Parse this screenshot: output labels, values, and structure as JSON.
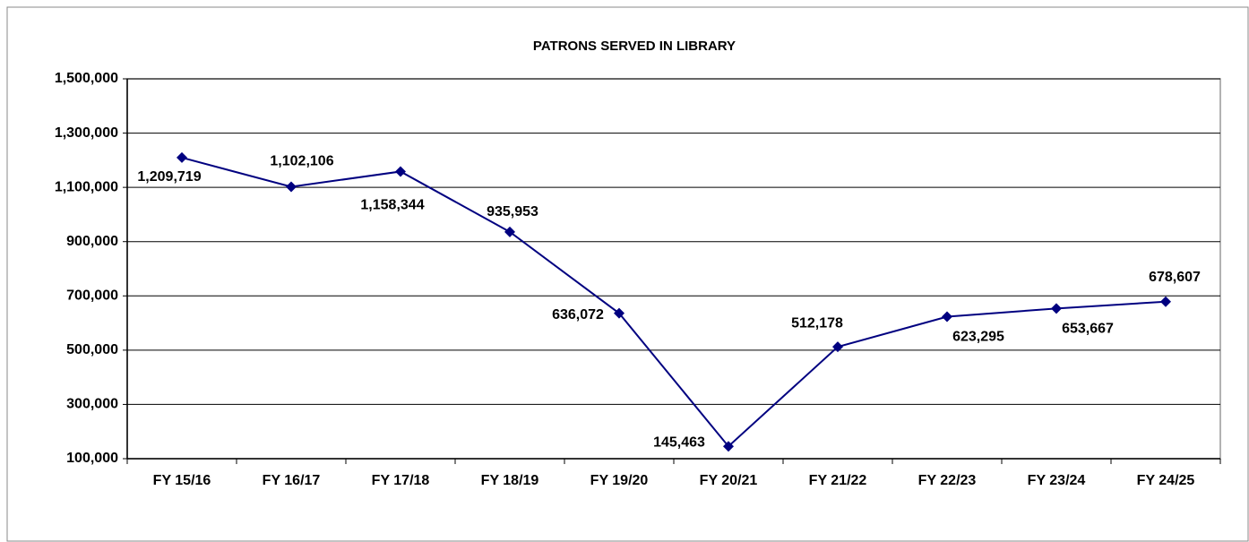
{
  "chart_data": {
    "type": "line",
    "title": "PATRONS  SERVED IN LIBRARY",
    "categories": [
      "FY 15/16",
      "FY 16/17",
      "FY 17/18",
      "FY 18/19",
      "FY 19/20",
      "FY 20/21",
      "FY 21/22",
      "FY 22/23",
      "FY 23/24",
      "FY 24/25"
    ],
    "series": [
      {
        "name": "Patrons Served",
        "color": "#000080",
        "values": [
          1209719,
          1102106,
          1158344,
          935953,
          636072,
          145463,
          512178,
          623295,
          653667,
          678607
        ],
        "value_labels": [
          "1,209,719",
          "1,102,106",
          "1,158,344",
          "935,953",
          "636,072",
          "145,463",
          "512,178",
          "623,295",
          "653,667",
          "678,607"
        ]
      }
    ],
    "ylim": [
      100000,
      1500000
    ],
    "yticks": [
      {
        "value": 100000,
        "label": "100,000"
      },
      {
        "value": 300000,
        "label": "300,000"
      },
      {
        "value": 500000,
        "label": "500,000"
      },
      {
        "value": 700000,
        "label": "700,000"
      },
      {
        "value": 900000,
        "label": "900,000"
      },
      {
        "value": 1100000,
        "label": "1,100,000"
      },
      {
        "value": 1300000,
        "label": "1,300,000"
      },
      {
        "value": 1500000,
        "label": "1,500,000"
      }
    ],
    "grid": true
  }
}
